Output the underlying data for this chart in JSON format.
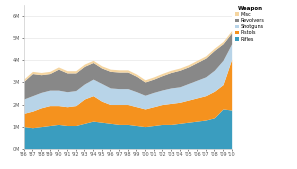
{
  "years": [
    "'86",
    "'87",
    "'88",
    "'89",
    "'90",
    "'91",
    "'92",
    "'93",
    "'94",
    "'95",
    "'96",
    "'97",
    "'98",
    "'99",
    "'00",
    "'01",
    "'02",
    "'03",
    "'04",
    "'05",
    "'06",
    "'07",
    "'08",
    "'09",
    "'10"
  ],
  "rifles": [
    1000000,
    950000,
    1000000,
    1050000,
    1100000,
    1050000,
    1050000,
    1150000,
    1250000,
    1200000,
    1150000,
    1100000,
    1100000,
    1050000,
    1000000,
    1050000,
    1100000,
    1100000,
    1150000,
    1200000,
    1250000,
    1300000,
    1400000,
    1800000,
    1750000
  ],
  "pistols": [
    600000,
    750000,
    850000,
    900000,
    850000,
    850000,
    900000,
    1100000,
    1150000,
    950000,
    850000,
    900000,
    900000,
    850000,
    800000,
    850000,
    900000,
    950000,
    950000,
    1000000,
    1050000,
    1100000,
    1200000,
    1100000,
    2300000
  ],
  "shotguns": [
    650000,
    700000,
    700000,
    700000,
    700000,
    680000,
    680000,
    680000,
    750000,
    800000,
    750000,
    720000,
    720000,
    680000,
    620000,
    650000,
    660000,
    700000,
    700000,
    750000,
    800000,
    850000,
    950000,
    1100000,
    700000
  ],
  "revolvers": [
    800000,
    1000000,
    800000,
    750000,
    950000,
    850000,
    800000,
    800000,
    750000,
    700000,
    750000,
    750000,
    750000,
    700000,
    600000,
    600000,
    650000,
    700000,
    750000,
    750000,
    800000,
    850000,
    900000,
    750000,
    500000
  ],
  "misc": [
    100000,
    100000,
    100000,
    100000,
    100000,
    100000,
    100000,
    100000,
    100000,
    100000,
    100000,
    100000,
    100000,
    100000,
    100000,
    100000,
    100000,
    100000,
    100000,
    100000,
    100000,
    100000,
    100000,
    100000,
    100000
  ],
  "colors": {
    "rifles": "#3a9dbf",
    "pistols": "#f5921e",
    "shotguns": "#b8d4e8",
    "revolvers": "#888888",
    "misc": "#f5d5a0"
  },
  "legend_title": "Weapon",
  "background_color": "#ffffff",
  "plot_bg": "#ffffff",
  "ylim": [
    0,
    6500000
  ],
  "yticks": [
    0,
    1000000,
    2000000,
    3000000,
    4000000,
    5000000,
    6000000
  ],
  "ytick_labels": [
    "0M",
    "1M",
    "2M",
    "3M",
    "4M",
    "5M",
    "6M"
  ],
  "figsize": [
    2.97,
    1.69
  ],
  "dpi": 100
}
